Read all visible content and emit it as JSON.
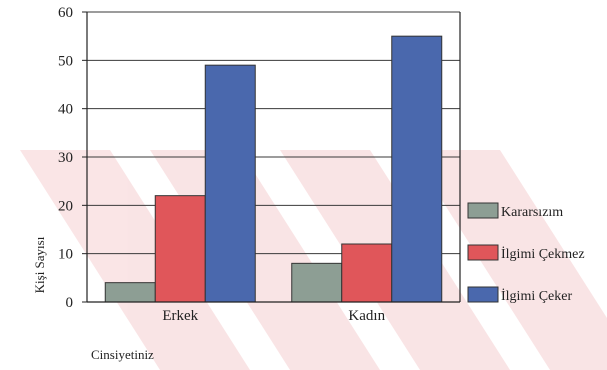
{
  "chart_data": {
    "type": "bar",
    "categories": [
      "Erkek",
      "Kadın"
    ],
    "series": [
      {
        "name": "Kararsızım",
        "values": [
          4,
          8
        ],
        "color": "#8d9e94"
      },
      {
        "name": "İlgimi Çekmez",
        "values": [
          22,
          12
        ],
        "color": "#e0565a"
      },
      {
        "name": "İlgimi Çeker",
        "values": [
          49,
          55
        ],
        "color": "#4a68ad"
      }
    ],
    "xlabel": "Cinsiyetiniz",
    "ylabel": "Kişi Sayısı",
    "ylim": [
      0,
      60
    ],
    "yticks": [
      0,
      10,
      20,
      30,
      40,
      50,
      60
    ],
    "grid": true,
    "legend_position": "right"
  }
}
